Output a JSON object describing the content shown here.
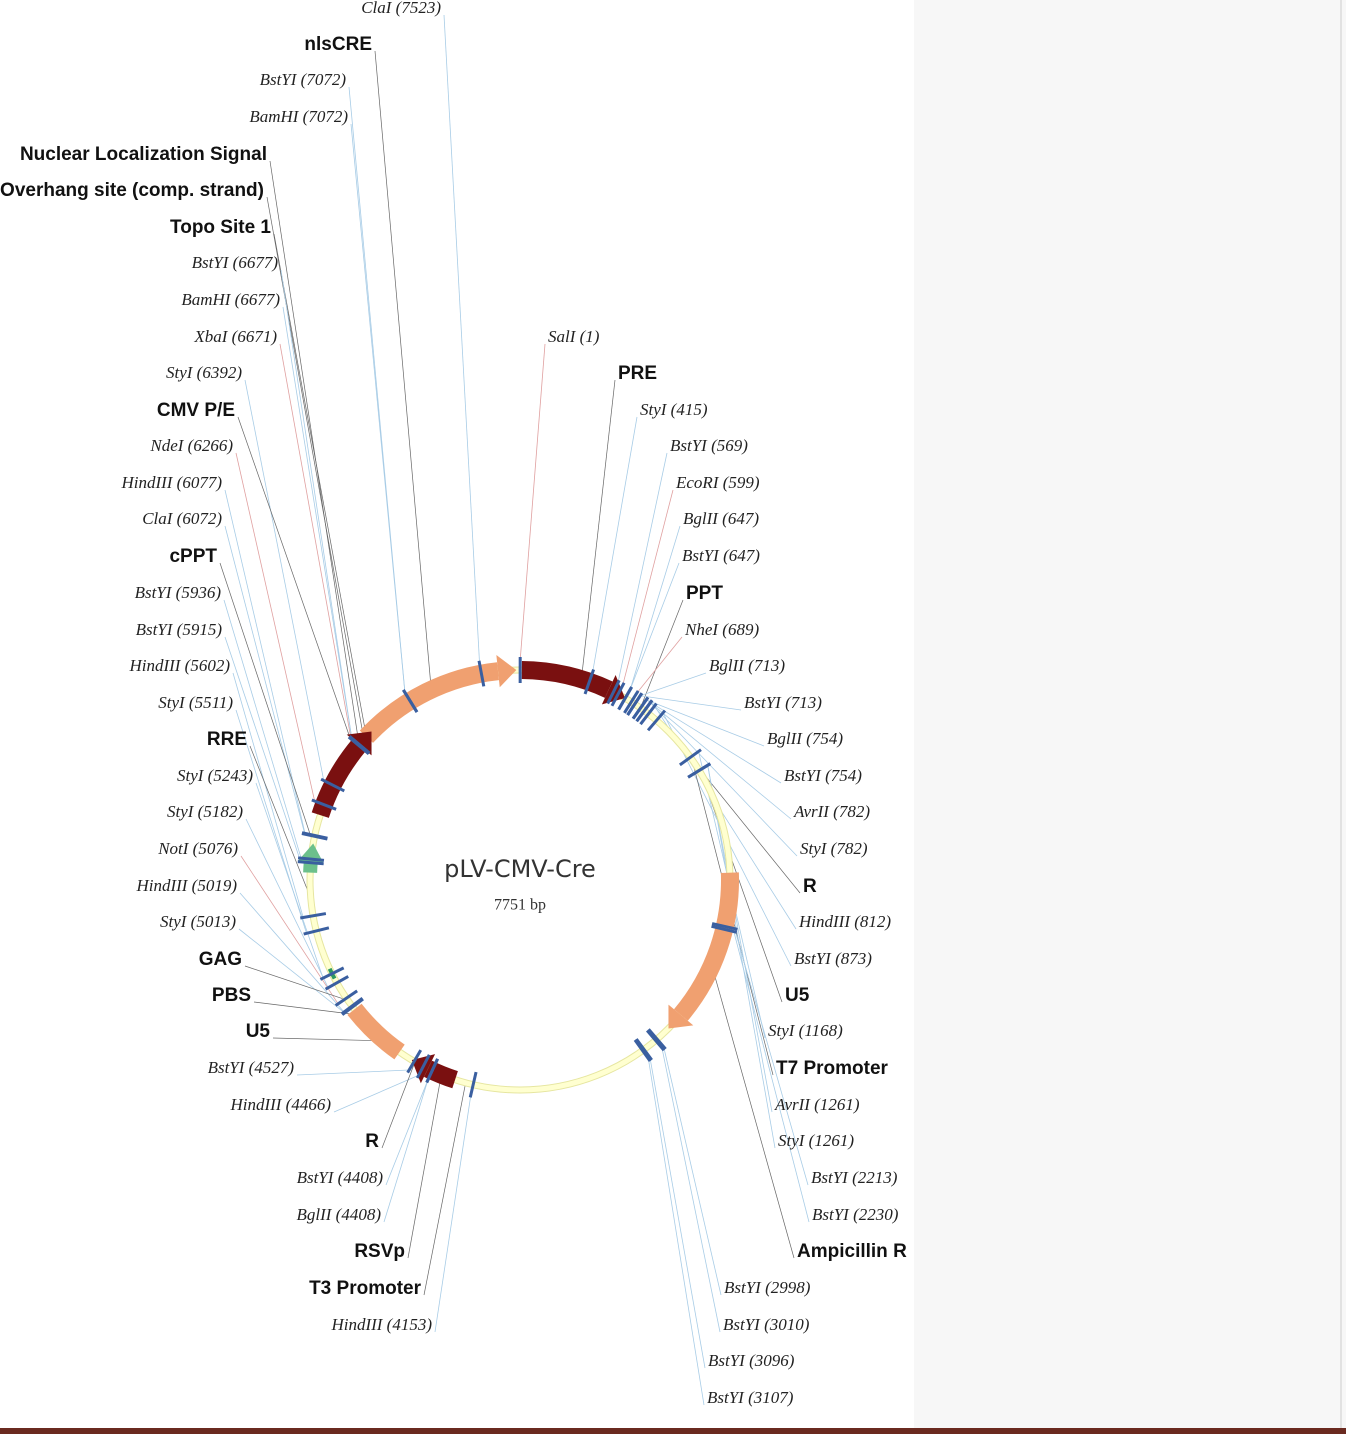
{
  "map": {
    "title": "pLV-CMV-Cre",
    "length": "7751 bp",
    "labels": [
      {
        "text": "ClaI (7523)",
        "kind": "site"
      },
      {
        "text": "nlsCRE",
        "kind": "feature"
      },
      {
        "text": "BstYI (7072)",
        "kind": "site"
      },
      {
        "text": "BamHI (7072)",
        "kind": "site"
      },
      {
        "text": "Nuclear Localization Signal",
        "kind": "feature"
      },
      {
        "text": "Overhang site (comp. strand)",
        "kind": "feature"
      },
      {
        "text": "Topo Site 1",
        "kind": "feature"
      },
      {
        "text": "BstYI (6677)",
        "kind": "site"
      },
      {
        "text": "BamHI (6677)",
        "kind": "site"
      },
      {
        "text": "XbaI (6671)",
        "kind": "site",
        "color": "#8b1a1a"
      },
      {
        "text": "StyI (6392)",
        "kind": "site"
      },
      {
        "text": "CMV P/E",
        "kind": "feature"
      },
      {
        "text": "NdeI (6266)",
        "kind": "site",
        "color": "#8b1a1a"
      },
      {
        "text": "HindIII (6077)",
        "kind": "site"
      },
      {
        "text": "ClaI (6072)",
        "kind": "site"
      },
      {
        "text": "cPPT",
        "kind": "feature"
      },
      {
        "text": "BstYI (5936)",
        "kind": "site"
      },
      {
        "text": "BstYI (5915)",
        "kind": "site"
      },
      {
        "text": "HindIII (5602)",
        "kind": "site"
      },
      {
        "text": "StyI (5511)",
        "kind": "site"
      },
      {
        "text": "RRE",
        "kind": "feature"
      },
      {
        "text": "StyI (5243)",
        "kind": "site"
      },
      {
        "text": "StyI (5182)",
        "kind": "site"
      },
      {
        "text": "NotI (5076)",
        "kind": "site",
        "color": "#8b1a1a"
      },
      {
        "text": "HindIII (5019)",
        "kind": "site"
      },
      {
        "text": "StyI (5013)",
        "kind": "site"
      },
      {
        "text": "GAG",
        "kind": "feature"
      },
      {
        "text": "PBS",
        "kind": "feature"
      },
      {
        "text": "U5",
        "kind": "feature"
      },
      {
        "text": "BstYI (4527)",
        "kind": "site"
      },
      {
        "text": "HindIII (4466)",
        "kind": "site"
      },
      {
        "text": "R",
        "kind": "feature"
      },
      {
        "text": "BstYI (4408)",
        "kind": "site"
      },
      {
        "text": "BglII (4408)",
        "kind": "site"
      },
      {
        "text": "RSVp",
        "kind": "feature"
      },
      {
        "text": "T3 Promoter",
        "kind": "feature"
      },
      {
        "text": "HindIII (4153)",
        "kind": "site"
      },
      {
        "text": "SalI (1)",
        "kind": "site",
        "color": "#8b1a1a"
      },
      {
        "text": "PRE",
        "kind": "feature"
      },
      {
        "text": "StyI (415)",
        "kind": "site"
      },
      {
        "text": "BstYI (569)",
        "kind": "site"
      },
      {
        "text": "EcoRI (599)",
        "kind": "site",
        "color": "#8b1a1a"
      },
      {
        "text": "BglII (647)",
        "kind": "site"
      },
      {
        "text": "BstYI (647)",
        "kind": "site"
      },
      {
        "text": "PPT",
        "kind": "feature"
      },
      {
        "text": "NheI (689)",
        "kind": "site",
        "color": "#8b1a1a"
      },
      {
        "text": "BglII (713)",
        "kind": "site"
      },
      {
        "text": "BstYI (713)",
        "kind": "site"
      },
      {
        "text": "BglII (754)",
        "kind": "site"
      },
      {
        "text": "BstYI (754)",
        "kind": "site"
      },
      {
        "text": "AvrII (782)",
        "kind": "site"
      },
      {
        "text": "StyI (782)",
        "kind": "site"
      },
      {
        "text": "R",
        "kind": "feature"
      },
      {
        "text": "HindIII (812)",
        "kind": "site"
      },
      {
        "text": "BstYI (873)",
        "kind": "site"
      },
      {
        "text": "U5",
        "kind": "feature"
      },
      {
        "text": "StyI (1168)",
        "kind": "site"
      },
      {
        "text": "T7 Promoter",
        "kind": "feature"
      },
      {
        "text": "AvrII (1261)",
        "kind": "site"
      },
      {
        "text": "StyI (1261)",
        "kind": "site"
      },
      {
        "text": "BstYI (2213)",
        "kind": "site"
      },
      {
        "text": "BstYI (2230)",
        "kind": "site"
      },
      {
        "text": "Ampicillin R",
        "kind": "feature"
      },
      {
        "text": "BstYI (2998)",
        "kind": "site"
      },
      {
        "text": "BstYI (3010)",
        "kind": "site"
      },
      {
        "text": "BstYI (3096)",
        "kind": "site"
      },
      {
        "text": "BstYI (3107)",
        "kind": "site"
      }
    ]
  }
}
